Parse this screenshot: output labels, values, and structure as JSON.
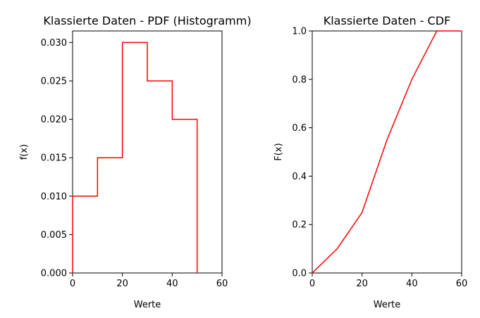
{
  "chart_data": [
    {
      "type": "line",
      "title": "Klassierte Daten - PDF (Histogramm)",
      "xlabel": "Werte",
      "ylabel": "f(x)",
      "xlim": [
        0,
        60
      ],
      "ylim": [
        0,
        0.0315
      ],
      "x_ticks": [
        0,
        20,
        40,
        60
      ],
      "x_tick_labels": [
        "0",
        "20",
        "40",
        "60"
      ],
      "y_ticks": [
        0,
        0.005,
        0.01,
        0.015,
        0.02,
        0.025,
        0.03
      ],
      "y_tick_labels": [
        "0.000",
        "0.005",
        "0.010",
        "0.015",
        "0.020",
        "0.025",
        "0.030"
      ],
      "series": [
        {
          "style": "step",
          "x": [
            0,
            0,
            10,
            10,
            20,
            20,
            30,
            30,
            40,
            40,
            50,
            50
          ],
          "y": [
            0,
            0.01,
            0.01,
            0.015,
            0.015,
            0.03,
            0.03,
            0.025,
            0.025,
            0.02,
            0.02,
            0
          ],
          "color": "#ff0000"
        }
      ],
      "grid": false
    },
    {
      "type": "line",
      "title": "Klassierte Daten - CDF",
      "xlabel": "Werte",
      "ylabel": "F(x)",
      "xlim": [
        0,
        60
      ],
      "ylim": [
        0,
        1.0
      ],
      "x_ticks": [
        0,
        20,
        40,
        60
      ],
      "x_tick_labels": [
        "0",
        "20",
        "40",
        "60"
      ],
      "y_ticks": [
        0,
        0.2,
        0.4,
        0.6,
        0.8,
        1.0
      ],
      "y_tick_labels": [
        "0.0",
        "0.2",
        "0.4",
        "0.6",
        "0.8",
        "1.0"
      ],
      "series": [
        {
          "x": [
            0,
            10,
            20,
            30,
            40,
            50,
            60
          ],
          "y": [
            0,
            0.1,
            0.25,
            0.55,
            0.8,
            1.0,
            1.0
          ],
          "color": "#ff0000"
        }
      ],
      "grid": false
    }
  ]
}
